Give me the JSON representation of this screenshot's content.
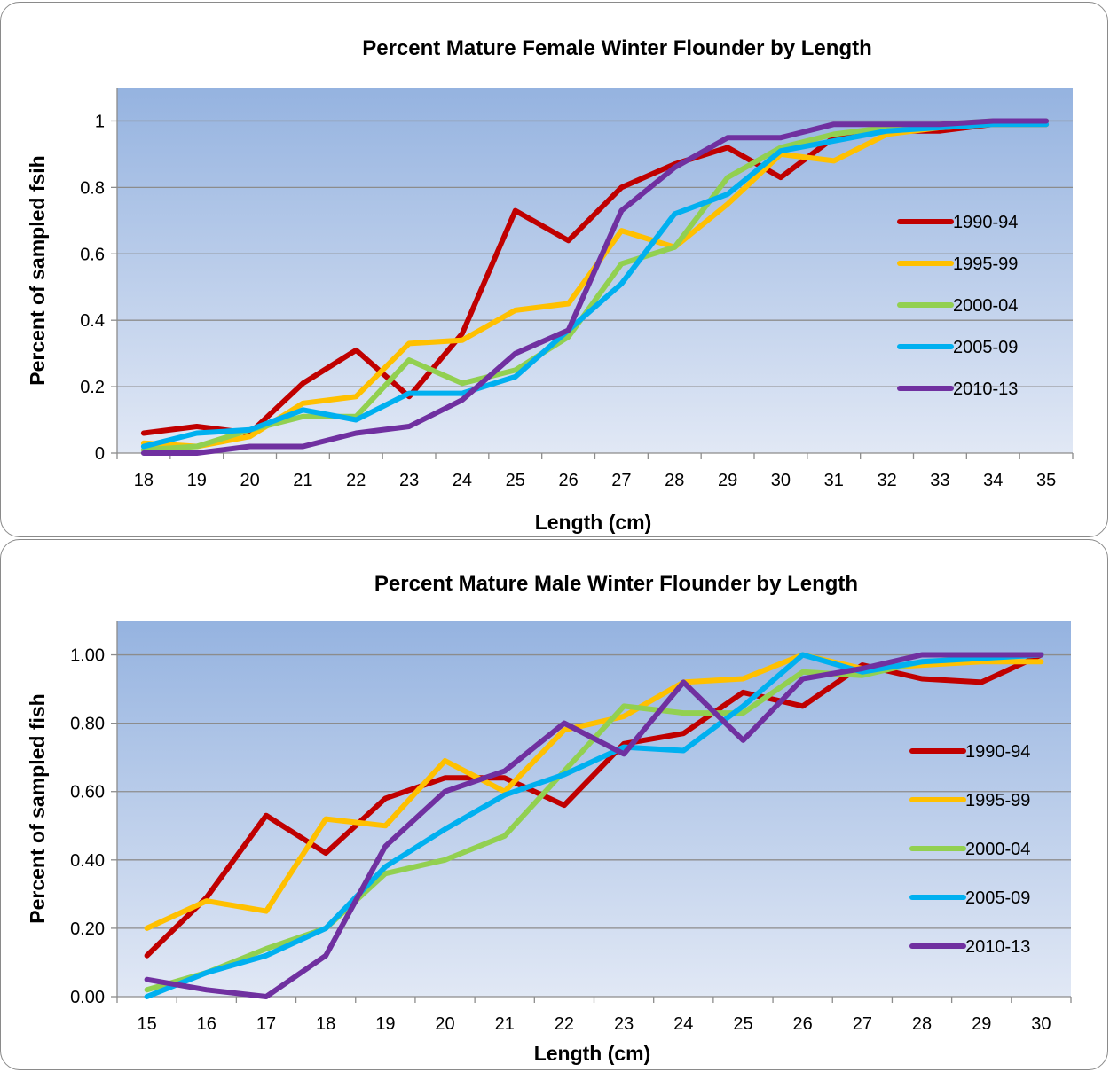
{
  "chart_data": [
    {
      "type": "line",
      "title": "Percent Mature Female Winter Flounder by Length",
      "xlabel": "Length (cm)",
      "ylabel": "Percent of sampled fsih",
      "categories": [
        "18",
        "19",
        "20",
        "21",
        "22",
        "23",
        "24",
        "25",
        "26",
        "27",
        "28",
        "29",
        "30",
        "31",
        "32",
        "33",
        "34",
        "35"
      ],
      "ylim": [
        0,
        1.1
      ],
      "yticks": [
        0,
        0.2,
        0.4,
        0.6,
        0.8,
        1
      ],
      "ytick_labels": [
        "0",
        "0.2",
        "0.4",
        "0.6",
        "0.8",
        "1"
      ],
      "grid": true,
      "legend_position": "right",
      "series": [
        {
          "name": "1990-94",
          "color": "#c00000",
          "values": [
            0.06,
            0.08,
            0.06,
            0.21,
            0.31,
            0.17,
            0.36,
            0.73,
            0.64,
            0.8,
            0.87,
            0.92,
            0.83,
            0.95,
            0.97,
            0.97,
            0.99,
            0.99
          ]
        },
        {
          "name": "1995-99",
          "color": "#ffc000",
          "values": [
            0.03,
            0.02,
            0.05,
            0.15,
            0.17,
            0.33,
            0.34,
            0.43,
            0.45,
            0.67,
            0.62,
            0.75,
            0.9,
            0.88,
            0.96,
            0.98,
            0.99,
            0.99
          ]
        },
        {
          "name": "2000-04",
          "color": "#92d050",
          "values": [
            0.01,
            0.02,
            0.07,
            0.11,
            0.11,
            0.28,
            0.21,
            0.25,
            0.35,
            0.57,
            0.62,
            0.83,
            0.92,
            0.96,
            0.98,
            0.99,
            1.0,
            1.0
          ]
        },
        {
          "name": "2005-09",
          "color": "#00b0f0",
          "values": [
            0.02,
            0.06,
            0.07,
            0.13,
            0.1,
            0.18,
            0.18,
            0.23,
            0.37,
            0.51,
            0.72,
            0.78,
            0.91,
            0.94,
            0.97,
            0.98,
            0.99,
            0.99
          ]
        },
        {
          "name": "2010-13",
          "color": "#7030a0",
          "values": [
            0.0,
            0.0,
            0.02,
            0.02,
            0.06,
            0.08,
            0.16,
            0.3,
            0.37,
            0.73,
            0.86,
            0.95,
            0.95,
            0.99,
            0.99,
            0.99,
            1.0,
            1.0
          ]
        }
      ]
    },
    {
      "type": "line",
      "title": "Percent Mature Male Winter Flounder by Length",
      "xlabel": "Length (cm)",
      "ylabel": "Percent of sampled fish",
      "categories": [
        "15",
        "16",
        "17",
        "18",
        "19",
        "20",
        "21",
        "22",
        "23",
        "24",
        "25",
        "26",
        "27",
        "28",
        "29",
        "30"
      ],
      "ylim": [
        0,
        1.1
      ],
      "yticks": [
        0,
        0.2,
        0.4,
        0.6,
        0.8,
        1.0
      ],
      "ytick_labels": [
        "0.00",
        "0.20",
        "0.40",
        "0.60",
        "0.80",
        "1.00"
      ],
      "grid": true,
      "legend_position": "right",
      "series": [
        {
          "name": "1990-94",
          "color": "#c00000",
          "values": [
            0.12,
            0.29,
            0.53,
            0.42,
            0.58,
            0.64,
            0.64,
            0.56,
            0.74,
            0.77,
            0.89,
            0.85,
            0.97,
            0.93,
            0.92,
            1.0
          ]
        },
        {
          "name": "1995-99",
          "color": "#ffc000",
          "values": [
            0.2,
            0.28,
            0.25,
            0.52,
            0.5,
            0.69,
            0.6,
            0.78,
            0.82,
            0.92,
            0.93,
            1.0,
            0.96,
            0.97,
            0.98,
            0.98
          ]
        },
        {
          "name": "2000-04",
          "color": "#92d050",
          "values": [
            0.02,
            0.07,
            0.14,
            0.2,
            0.36,
            0.4,
            0.47,
            0.66,
            0.85,
            0.83,
            0.83,
            0.95,
            0.94,
            0.98,
            0.99,
            1.0
          ]
        },
        {
          "name": "2005-09",
          "color": "#00b0f0",
          "values": [
            0.0,
            0.07,
            0.12,
            0.2,
            0.38,
            0.49,
            0.59,
            0.65,
            0.73,
            0.72,
            0.85,
            1.0,
            0.95,
            0.98,
            0.99,
            1.0
          ]
        },
        {
          "name": "2010-13",
          "color": "#7030a0",
          "values": [
            0.05,
            0.02,
            0.0,
            0.12,
            0.44,
            0.6,
            0.66,
            0.8,
            0.71,
            0.92,
            0.75,
            0.93,
            0.96,
            1.0,
            1.0,
            1.0
          ]
        }
      ]
    }
  ]
}
